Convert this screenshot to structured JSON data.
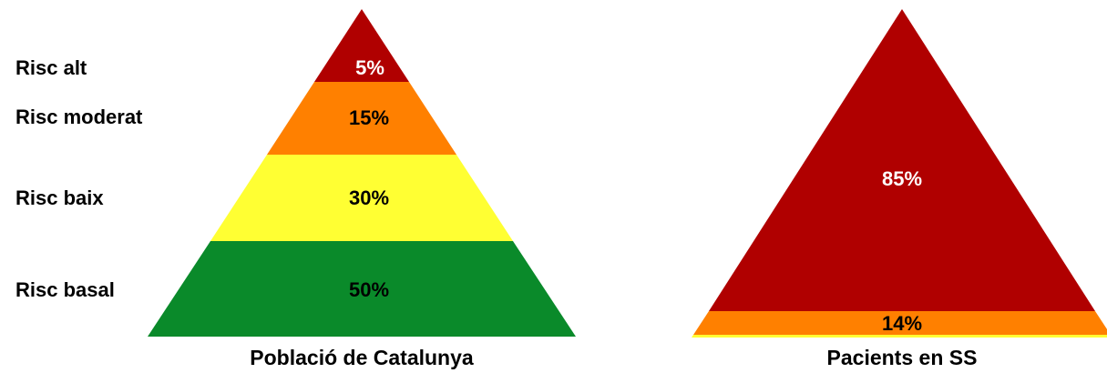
{
  "row_labels": [
    "Risc alt",
    "Risc moderat",
    "Risc baix",
    "Risc basal"
  ],
  "pyramids": [
    {
      "title": "Població de Catalunya",
      "levels": [
        "5%",
        "15%",
        "30%",
        "50%"
      ]
    },
    {
      "title": "Pacients en SS",
      "levels": [
        "85%",
        "14%"
      ]
    }
  ]
}
